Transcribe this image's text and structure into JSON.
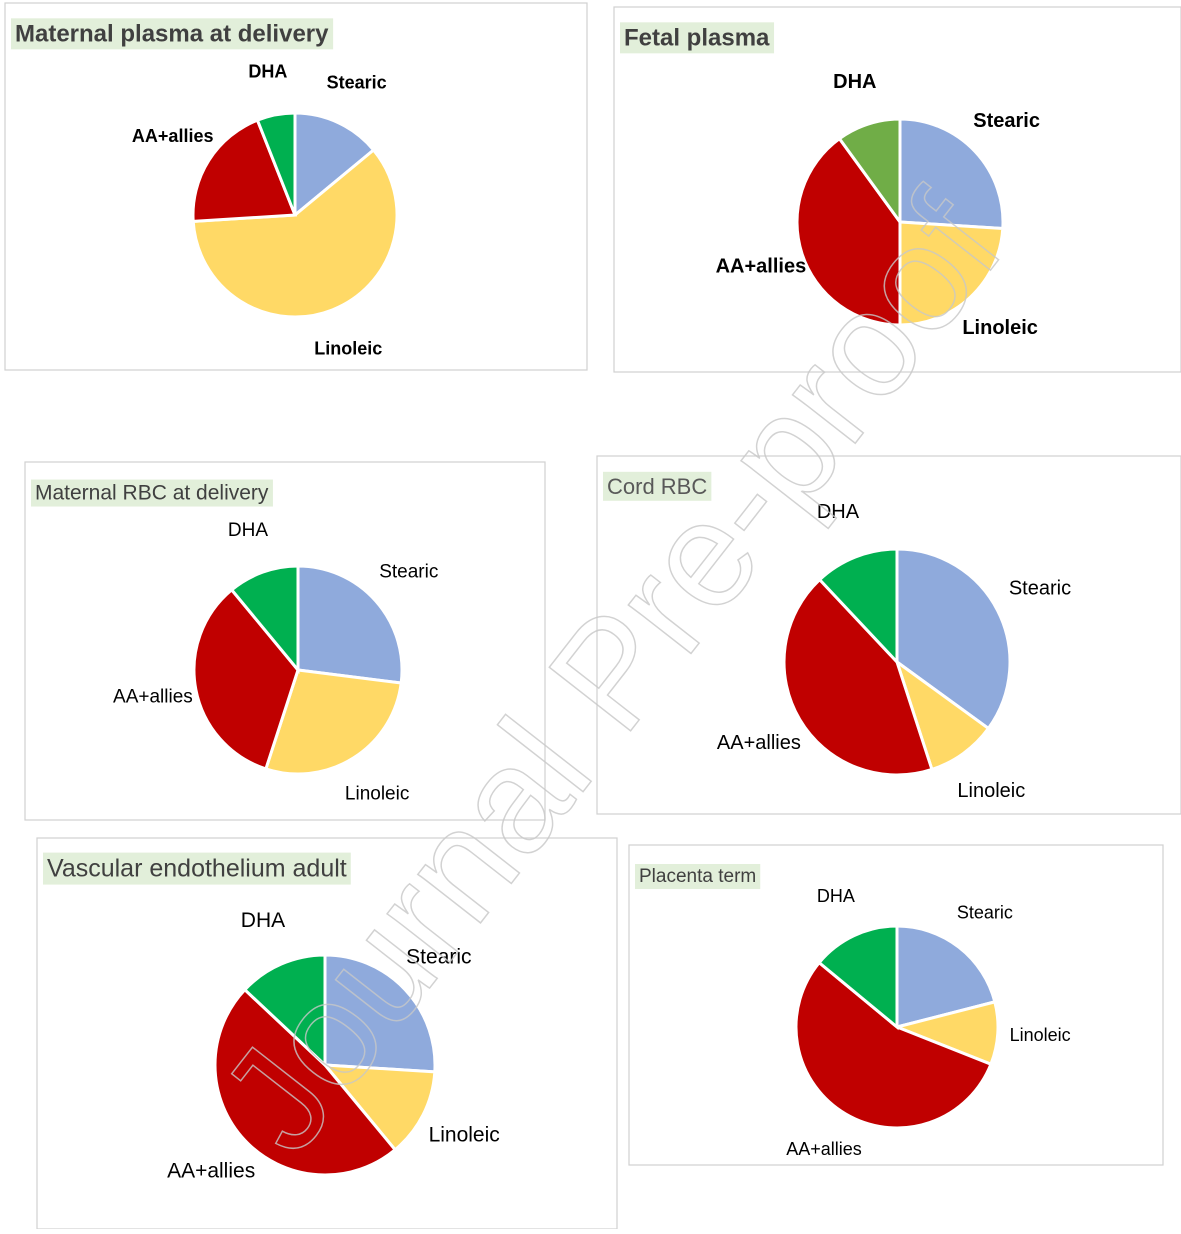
{
  "chart_data": [
    {
      "type": "pie",
      "title": "Maternal plasma at delivery",
      "categories": [
        "Stearic",
        "Linoleic",
        "AA+allies",
        "DHA"
      ],
      "values": [
        14,
        60,
        20,
        6
      ],
      "colors": [
        "#8faadc",
        "#ffd966",
        "#c00000",
        "#00b050"
      ]
    },
    {
      "type": "pie",
      "title": "Fetal plasma",
      "categories": [
        "Stearic",
        "Linoleic",
        "AA+allies",
        "DHA"
      ],
      "values": [
        26,
        24,
        40,
        10
      ],
      "colors": [
        "#8faadc",
        "#ffd966",
        "#c00000",
        "#70ad47"
      ]
    },
    {
      "type": "pie",
      "title": "Maternal RBC at delivery",
      "categories": [
        "Stearic",
        "Linoleic",
        "AA+allies",
        "DHA"
      ],
      "values": [
        27,
        28,
        34,
        11
      ],
      "colors": [
        "#8faadc",
        "#ffd966",
        "#c00000",
        "#00b050"
      ]
    },
    {
      "type": "pie",
      "title": "Cord RBC",
      "categories": [
        "Stearic",
        "Linoleic",
        "AA+allies",
        "DHA"
      ],
      "values": [
        35,
        10,
        43,
        12
      ],
      "colors": [
        "#8faadc",
        "#ffd966",
        "#c00000",
        "#00b050"
      ]
    },
    {
      "type": "pie",
      "title": "Vascular endothelium adult",
      "categories": [
        "Stearic",
        "Linoleic",
        "AA+allies",
        "DHA"
      ],
      "values": [
        26,
        13,
        48,
        13
      ],
      "colors": [
        "#8faadc",
        "#ffd966",
        "#c00000",
        "#00b050"
      ]
    },
    {
      "type": "pie",
      "title": "Placenta term",
      "categories": [
        "Stearic",
        "Linoleic",
        "AA+allies",
        "DHA"
      ],
      "values": [
        21,
        10,
        55,
        14
      ],
      "colors": [
        "#8faadc",
        "#ffd966",
        "#c00000",
        "#00b050"
      ]
    }
  ],
  "watermark": "Journal Pre-proof"
}
